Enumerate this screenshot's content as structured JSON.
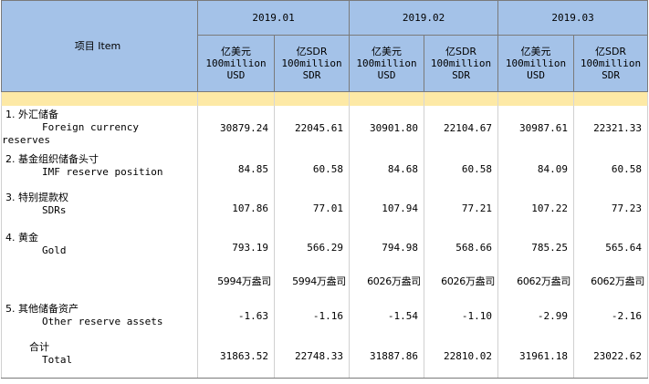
{
  "header": {
    "item_label": "项目  Item",
    "periods": [
      "2019.01",
      "2019.02",
      "2019.03"
    ],
    "col_units": [
      {
        "cn": "亿美元",
        "en": "100million",
        "unit": "USD"
      },
      {
        "cn": "亿SDR",
        "en": "100million",
        "unit": "SDR"
      }
    ]
  },
  "rows": [
    {
      "cn": "1.  外汇储备",
      "en": "Foreign currency",
      "en2": "reserves",
      "values": [
        "30879.24",
        "22045.61",
        "30901.80",
        "22104.67",
        "30987.61",
        "22321.33"
      ]
    },
    {
      "cn": "2.  基金组织储备头寸",
      "en": "IMF reserve position",
      "values": [
        "84.85",
        "60.58",
        "84.68",
        "60.58",
        "84.09",
        "60.58"
      ]
    },
    {
      "cn": "3.  特别提款权",
      "en": "SDRs",
      "values": [
        "107.86",
        "77.01",
        "107.94",
        "77.21",
        "107.22",
        "77.23"
      ]
    },
    {
      "cn": "4.  黄金",
      "en": "Gold",
      "values": [
        "793.19",
        "566.29",
        "794.98",
        "568.66",
        "785.25",
        "565.64"
      ]
    },
    {
      "cn": "",
      "en": "",
      "values": [
        "5994万盎司",
        "5994万盎司",
        "6026万盎司",
        "6026万盎司",
        "6062万盎司",
        "6062万盎司"
      ]
    },
    {
      "cn": "5.  其他储备资产",
      "en": "Other reserve assets",
      "values": [
        "-1.63",
        "-1.16",
        "-1.54",
        "-1.10",
        "-2.99",
        "-2.16"
      ]
    },
    {
      "cn": "合计",
      "en": "Total",
      "values": [
        "31863.52",
        "22748.33",
        "31887.86",
        "22810.02",
        "31961.18",
        "23022.62"
      ]
    }
  ]
}
